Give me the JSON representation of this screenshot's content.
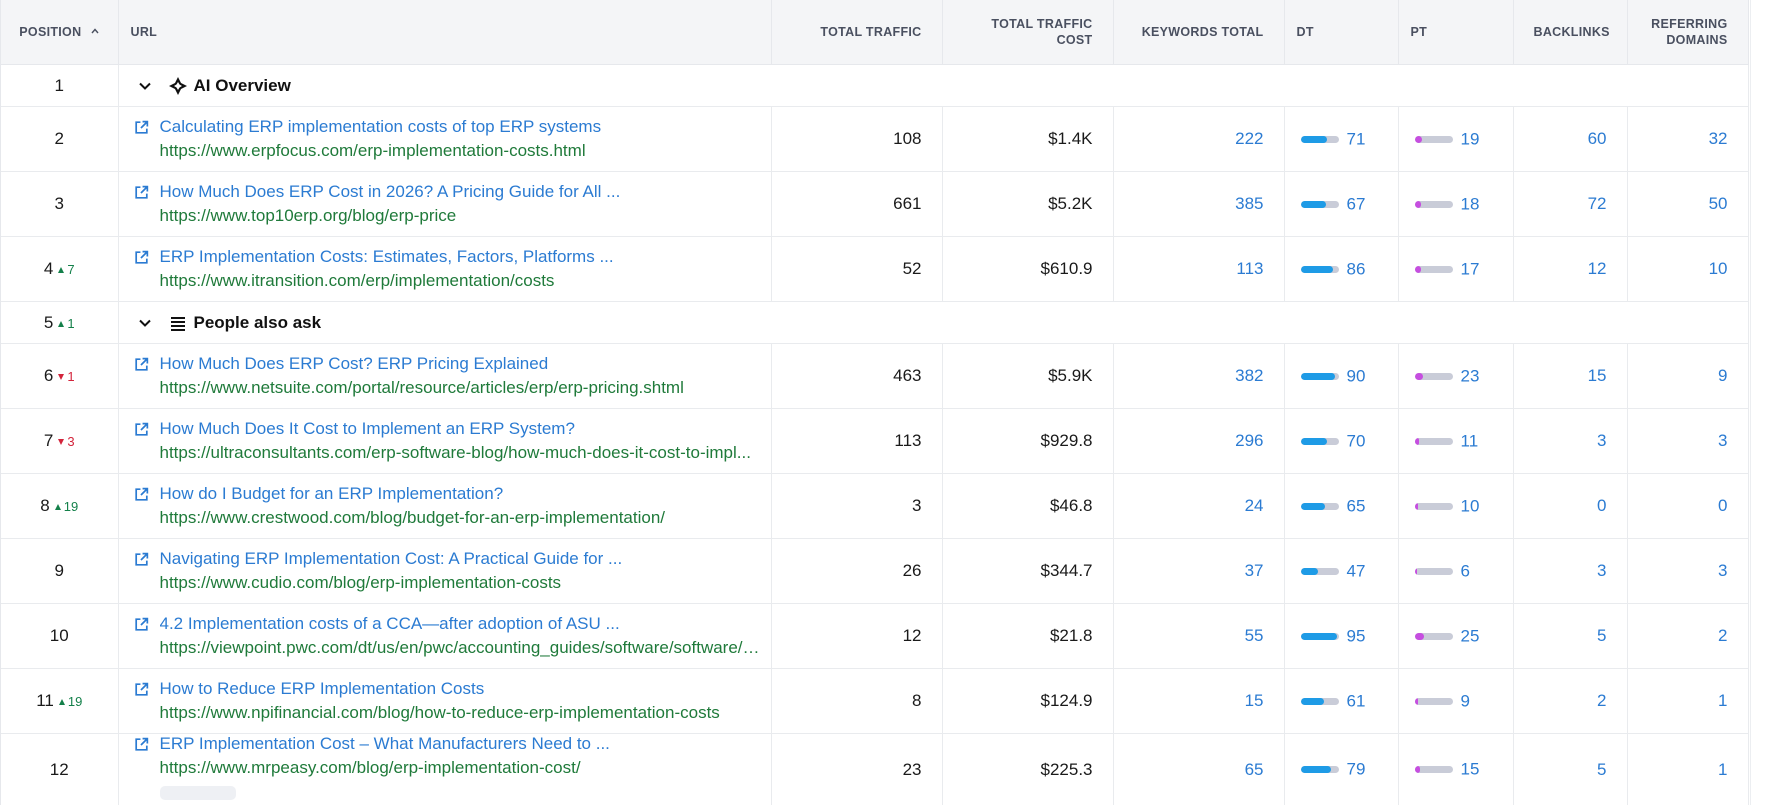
{
  "headers": {
    "position": "POSITION",
    "url": "URL",
    "traffic": "TOTAL TRAFFIC",
    "cost_line1": "TOTAL TRAFFIC",
    "cost_line2": "COST",
    "keywords": "KEYWORDS TOTAL",
    "dt": "DT",
    "pt": "PT",
    "backlinks": "BACKLINKS",
    "ref_line1": "REFERRING",
    "ref_line2": "DOMAINS"
  },
  "features": {
    "ai_overview": {
      "position": "1",
      "label": "AI Overview"
    },
    "paa": {
      "position": "5",
      "change": "1",
      "label": "People also ask"
    }
  },
  "rows": [
    {
      "position": "2",
      "change": "",
      "dir": "",
      "title": "Calculating ERP implementation costs of top ERP systems",
      "url": "https://www.erpfocus.com/erp-implementation-costs.html",
      "traffic": "108",
      "cost": "$1.4K",
      "keywords": "222",
      "dt": 71,
      "pt": 19,
      "backlinks": "60",
      "referring": "32"
    },
    {
      "position": "3",
      "change": "",
      "dir": "",
      "title": "How Much Does ERP Cost in 2026? A Pricing Guide for All ...",
      "url": "https://www.top10erp.org/blog/erp-price",
      "traffic": "661",
      "cost": "$5.2K",
      "keywords": "385",
      "dt": 67,
      "pt": 18,
      "backlinks": "72",
      "referring": "50"
    },
    {
      "position": "4",
      "change": "7",
      "dir": "up",
      "title": "ERP Implementation Costs: Estimates, Factors, Platforms ...",
      "url": "https://www.itransition.com/erp/implementation/costs",
      "traffic": "52",
      "cost": "$610.9",
      "keywords": "113",
      "dt": 86,
      "pt": 17,
      "backlinks": "12",
      "referring": "10"
    },
    {
      "position": "6",
      "change": "1",
      "dir": "down",
      "title": "How Much Does ERP Cost? ERP Pricing Explained",
      "url": "https://www.netsuite.com/portal/resource/articles/erp/erp-pricing.shtml",
      "traffic": "463",
      "cost": "$5.9K",
      "keywords": "382",
      "dt": 90,
      "pt": 23,
      "backlinks": "15",
      "referring": "9"
    },
    {
      "position": "7",
      "change": "3",
      "dir": "down",
      "title": "How Much Does It Cost to Implement an ERP System?",
      "url": "https://ultraconsultants.com/erp-software-blog/how-much-does-it-cost-to-impl...",
      "traffic": "113",
      "cost": "$929.8",
      "keywords": "296",
      "dt": 70,
      "pt": 11,
      "backlinks": "3",
      "referring": "3"
    },
    {
      "position": "8",
      "change": "19",
      "dir": "up",
      "title": "How do I Budget for an ERP Implementation?",
      "url": "https://www.crestwood.com/blog/budget-for-an-erp-implementation/",
      "traffic": "3",
      "cost": "$46.8",
      "keywords": "24",
      "dt": 65,
      "pt": 10,
      "backlinks": "0",
      "referring": "0"
    },
    {
      "position": "9",
      "change": "",
      "dir": "",
      "title": "Navigating ERP Implementation Cost: A Practical Guide for ...",
      "url": "https://www.cudio.com/blog/erp-implementation-costs",
      "traffic": "26",
      "cost": "$344.7",
      "keywords": "37",
      "dt": 47,
      "pt": 6,
      "backlinks": "3",
      "referring": "3"
    },
    {
      "position": "10",
      "change": "",
      "dir": "",
      "title": "4.2 Implementation costs of a CCA—after adoption of ASU ...",
      "url": "https://viewpoint.pwc.com/dt/us/en/pwc/accounting_guides/software/software/c...",
      "traffic": "12",
      "cost": "$21.8",
      "keywords": "55",
      "dt": 95,
      "pt": 25,
      "backlinks": "5",
      "referring": "2"
    },
    {
      "position": "11",
      "change": "19",
      "dir": "up",
      "title": "How to Reduce ERP Implementation Costs",
      "url": "https://www.npifinancial.com/blog/how-to-reduce-erp-implementation-costs",
      "traffic": "8",
      "cost": "$124.9",
      "keywords": "15",
      "dt": 61,
      "pt": 9,
      "backlinks": "2",
      "referring": "1"
    },
    {
      "position": "12",
      "change": "",
      "dir": "",
      "title": "ERP Implementation Cost – What Manufacturers Need to ...",
      "url": "https://www.mrpeasy.com/blog/erp-implementation-cost/",
      "traffic": "23",
      "cost": "$225.3",
      "keywords": "65",
      "dt": 79,
      "pt": 15,
      "backlinks": "5",
      "referring": "1"
    }
  ],
  "colors": {
    "link": "#2b7bd2",
    "url": "#1f7a3a",
    "up": "#14804a",
    "down": "#d3243b",
    "dt_bar": "#1e9be6",
    "pt_bar": "#c64ee0"
  }
}
